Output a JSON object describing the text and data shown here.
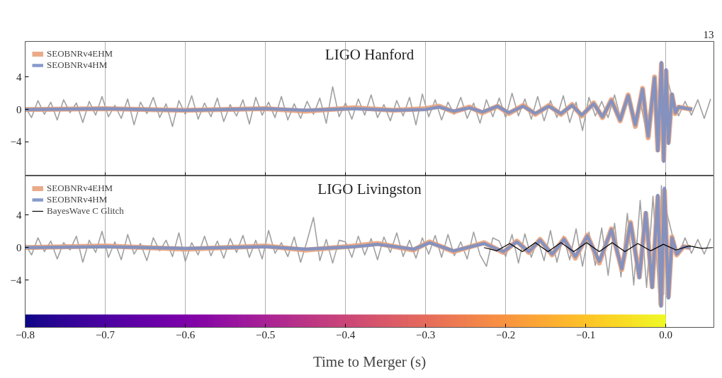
{
  "chart_data": [
    {
      "type": "line",
      "title": "LIGO Hanford",
      "annotations": [
        "13"
      ],
      "xlim": [
        -0.8,
        0.06
      ],
      "xticks": [
        -0.8,
        -0.7,
        -0.6,
        -0.5,
        -0.4,
        -0.3,
        -0.2,
        -0.1,
        0.0
      ],
      "ylim": [
        -8.2,
        8.4
      ],
      "yticks": [
        {
          "value": -4,
          "label": "−4"
        },
        0,
        4
      ],
      "tick_labels": "y",
      "grid": "x",
      "legend": "top left",
      "series": [
        {
          "color": "#a0a0a0",
          "x": [
            -0.8,
            -0.792,
            -0.784,
            -0.776,
            -0.768,
            -0.76,
            -0.752,
            -0.744,
            -0.736,
            -0.728,
            -0.72,
            -0.712,
            -0.704,
            -0.696,
            -0.688,
            -0.68,
            -0.672,
            -0.664,
            -0.656,
            -0.648,
            -0.64,
            -0.632,
            -0.624,
            -0.616,
            -0.608,
            -0.6,
            -0.592,
            -0.584,
            -0.576,
            -0.568,
            -0.56,
            -0.552,
            -0.544,
            -0.536,
            -0.528,
            -0.52,
            -0.512,
            -0.504,
            -0.496,
            -0.488,
            -0.48,
            -0.472,
            -0.464,
            -0.456,
            -0.448,
            -0.44,
            -0.432,
            -0.424,
            -0.416,
            -0.408,
            -0.4,
            -0.392,
            -0.384,
            -0.376,
            -0.368,
            -0.36,
            -0.352,
            -0.344,
            -0.336,
            -0.328,
            -0.32,
            -0.312,
            -0.304,
            -0.296,
            -0.288,
            -0.28,
            -0.272,
            -0.264,
            -0.256,
            -0.248,
            -0.24,
            -0.232,
            -0.224,
            -0.216,
            -0.208,
            -0.2,
            -0.192,
            -0.184,
            -0.176,
            -0.168,
            -0.16,
            -0.152,
            -0.144,
            -0.136,
            -0.128,
            -0.12,
            -0.112,
            -0.104,
            -0.096,
            -0.088,
            -0.08,
            -0.072,
            -0.064,
            -0.056,
            -0.048,
            -0.04,
            -0.032,
            -0.024,
            -0.016,
            -0.008,
            -0.0055,
            -0.0026,
            0.0,
            0.008,
            0.016,
            0.024,
            0.032,
            0.04,
            0.048,
            0.056
          ],
          "values": [
            0.3,
            -1.0,
            1.1,
            -0.6,
            0.9,
            -1.3,
            1.2,
            -0.4,
            0.8,
            -1.6,
            1.0,
            -0.7,
            1.6,
            -0.9,
            0.5,
            -1.1,
            1.3,
            -1.9,
            0.9,
            -0.5,
            1.5,
            -1.0,
            0.7,
            -2.1,
            1.1,
            -0.6,
            1.7,
            -1.2,
            0.8,
            -0.9,
            1.4,
            -1.5,
            0.6,
            -0.8,
            1.2,
            -1.8,
            1.5,
            -0.7,
            0.9,
            -1.0,
            1.6,
            -1.3,
            0.7,
            -1.1,
            1.0,
            -0.6,
            1.4,
            -1.7,
            2.8,
            -0.9,
            0.8,
            -1.2,
            1.3,
            -0.7,
            1.8,
            -1.0,
            0.6,
            -1.4,
            1.1,
            -0.8,
            1.5,
            -1.9,
            1.9,
            -0.9,
            1.2,
            -1.3,
            0.9,
            -0.6,
            1.5,
            -1.1,
            0.8,
            -1.7,
            1.2,
            -0.9,
            1.4,
            -1.0,
            2.0,
            -0.8,
            1.3,
            -1.2,
            1.6,
            -1.4,
            1.1,
            -1.0,
            1.7,
            -1.6,
            0.9,
            -2.6,
            1.5,
            -0.8,
            1.0,
            -1.0,
            1.8,
            -1.3,
            1.7,
            -1.8,
            1.1,
            -3.0,
            3.5,
            -4.8,
            5.4,
            -6.0,
            4.4,
            1.5,
            -0.8,
            1.0,
            -0.7,
            1.2,
            -1.1,
            1.3
          ]
        },
        {
          "name": "SEOBNRv4EHM",
          "color": "#e8a27c",
          "x": [
            -0.8,
            -0.7,
            -0.6,
            -0.5,
            -0.45,
            -0.389,
            -0.34,
            -0.3,
            -0.283,
            -0.265,
            -0.245,
            -0.229,
            -0.21,
            -0.196,
            -0.178,
            -0.163,
            -0.146,
            -0.131,
            -0.117,
            -0.105,
            -0.09,
            -0.079,
            -0.068,
            -0.057,
            -0.047,
            -0.038,
            -0.029,
            -0.022,
            -0.014,
            -0.01,
            -0.0055,
            -0.0026,
            0.0004,
            0.0033,
            0.0077,
            0.012,
            0.016,
            0.033
          ],
          "values": [
            0,
            0.1,
            -0.1,
            0.1,
            -0.2,
            0.2,
            -0.1,
            0.1,
            0.4,
            -0.3,
            0.3,
            -0.4,
            0.4,
            -0.5,
            0.5,
            -0.6,
            0.5,
            -0.6,
            0.6,
            -0.8,
            0.8,
            -1.0,
            1.2,
            -1.4,
            1.8,
            -2.1,
            2.6,
            -3.5,
            4.0,
            -5.0,
            5.6,
            -6.2,
            4.7,
            -4.0,
            1.8,
            -0.5,
            0.3,
            0
          ]
        },
        {
          "name": "SEOBNRv4HM",
          "color": "#7a8fc4",
          "x": [
            -0.8,
            -0.7,
            -0.6,
            -0.5,
            -0.45,
            -0.389,
            -0.34,
            -0.3,
            -0.283,
            -0.265,
            -0.245,
            -0.229,
            -0.21,
            -0.196,
            -0.178,
            -0.163,
            -0.146,
            -0.131,
            -0.117,
            -0.105,
            -0.09,
            -0.079,
            -0.068,
            -0.057,
            -0.047,
            -0.038,
            -0.029,
            -0.022,
            -0.014,
            -0.01,
            -0.0055,
            -0.0026,
            0.0004,
            0.0033,
            0.0077,
            0.012,
            0.016,
            0.033
          ],
          "values": [
            0,
            0.1,
            -0.1,
            0.1,
            -0.1,
            0.1,
            -0.1,
            0,
            0.3,
            -0.2,
            0.2,
            -0.3,
            0.4,
            -0.4,
            0.4,
            -0.5,
            0.4,
            -0.5,
            0.5,
            -0.7,
            0.7,
            -0.9,
            1.1,
            -1.3,
            1.7,
            -1.9,
            2.5,
            -3.3,
            3.9,
            -5.1,
            5.8,
            -6.4,
            4.9,
            -4.2,
            1.9,
            -0.4,
            0.3,
            0
          ]
        }
      ]
    },
    {
      "type": "line",
      "title": "LIGO Livingston",
      "xlabel": "Time to Merger (s)",
      "xlim": [
        -0.8,
        0.06
      ],
      "xticks": [
        {
          "value": -0.8,
          "label": "−0.8"
        },
        {
          "value": -0.7,
          "label": "−0.7"
        },
        {
          "value": -0.6,
          "label": "−0.6"
        },
        {
          "value": -0.5,
          "label": "−0.5"
        },
        {
          "value": -0.4,
          "label": "−0.4"
        },
        {
          "value": -0.3,
          "label": "−0.3"
        },
        {
          "value": -0.2,
          "label": "−0.2"
        },
        {
          "value": -0.1,
          "label": "−0.1"
        },
        {
          "value": 0.0,
          "label": "0.0"
        }
      ],
      "ylim": [
        -9.8,
        8.8
      ],
      "yticks": [
        {
          "value": -4,
          "label": "−4"
        },
        0,
        4
      ],
      "grid": "x",
      "legend": "top left",
      "bands": [
        {
          "axis": "x",
          "from": -0.8,
          "to": 0.0
        }
      ],
      "series": [
        {
          "color": "#a0a0a0",
          "x": [
            -0.8,
            -0.792,
            -0.784,
            -0.776,
            -0.768,
            -0.76,
            -0.752,
            -0.744,
            -0.736,
            -0.728,
            -0.72,
            -0.712,
            -0.704,
            -0.696,
            -0.688,
            -0.68,
            -0.672,
            -0.664,
            -0.656,
            -0.648,
            -0.64,
            -0.632,
            -0.624,
            -0.616,
            -0.608,
            -0.6,
            -0.592,
            -0.584,
            -0.576,
            -0.568,
            -0.56,
            -0.552,
            -0.544,
            -0.536,
            -0.528,
            -0.52,
            -0.512,
            -0.504,
            -0.496,
            -0.488,
            -0.48,
            -0.472,
            -0.464,
            -0.456,
            -0.448,
            -0.44,
            -0.432,
            -0.424,
            -0.416,
            -0.408,
            -0.4,
            -0.392,
            -0.384,
            -0.376,
            -0.368,
            -0.36,
            -0.352,
            -0.344,
            -0.336,
            -0.328,
            -0.32,
            -0.312,
            -0.304,
            -0.296,
            -0.288,
            -0.28,
            -0.272,
            -0.264,
            -0.256,
            -0.248,
            -0.24,
            -0.232,
            -0.224,
            -0.216,
            -0.208,
            -0.2,
            -0.192,
            -0.184,
            -0.176,
            -0.168,
            -0.16,
            -0.152,
            -0.144,
            -0.136,
            -0.128,
            -0.12,
            -0.112,
            -0.104,
            -0.096,
            -0.088,
            -0.08,
            -0.072,
            -0.064,
            -0.056,
            -0.048,
            -0.04,
            -0.032,
            -0.024,
            -0.016,
            -0.008,
            -0.0055,
            -0.0026,
            0.0,
            0.008,
            0.016,
            0.024,
            0.032,
            0.04,
            0.048,
            0.056
          ],
          "values": [
            0.4,
            -0.9,
            1.2,
            -0.5,
            0.8,
            -1.4,
            0.6,
            -0.3,
            1.4,
            -1.8,
            0.9,
            -0.6,
            2.0,
            -1.2,
            0.7,
            -1.5,
            1.6,
            -0.8,
            0.5,
            -1.6,
            1.2,
            -0.4,
            0.9,
            -1.1,
            1.8,
            -1.7,
            0.6,
            -0.9,
            1.4,
            -1.0,
            0.8,
            -1.3,
            1.1,
            -0.6,
            1.5,
            -1.2,
            0.9,
            -1.4,
            2.1,
            -0.7,
            0.6,
            -1.1,
            1.3,
            -1.8,
            0.8,
            3.7,
            -1.6,
            1.0,
            -1.9,
            0.9,
            0.7,
            -1.2,
            1.4,
            -0.9,
            1.1,
            -1.5,
            1.3,
            -0.6,
            1.8,
            -1.1,
            0.9,
            -1.3,
            1.2,
            -0.8,
            1.5,
            -1.2,
            1.6,
            -1.0,
            0.7,
            -1.4,
            1.9,
            -0.9,
            -2.3,
            1.2,
            0.8,
            -1.1,
            1.6,
            -1.9,
            1.7,
            -1.2,
            1.0,
            -1.6,
            2.1,
            -1.8,
            1.4,
            -1.5,
            2.3,
            -2.3,
            1.9,
            -2.2,
            2.4,
            -3.4,
            3.0,
            -3.6,
            4.2,
            -4.6,
            5.8,
            -4.9,
            6.3,
            -7.0,
            7.6,
            -5.8,
            4.8,
            1.6,
            -0.9,
            1.2,
            -0.7,
            1.0,
            -0.8,
            1.1
          ]
        },
        {
          "name": "SEOBNRv4EHM",
          "color": "#e8a27c",
          "x": [
            -0.8,
            -0.7,
            -0.6,
            -0.5,
            -0.45,
            -0.389,
            -0.36,
            -0.315,
            -0.295,
            -0.265,
            -0.227,
            -0.203,
            -0.186,
            -0.171,
            -0.157,
            -0.142,
            -0.127,
            -0.113,
            -0.098,
            -0.083,
            -0.068,
            -0.055,
            -0.044,
            -0.033,
            -0.025,
            -0.017,
            -0.01,
            -0.006,
            -0.0017,
            0.0033,
            0.0077,
            0.0136,
            0.022,
            0.031
          ],
          "values": [
            0,
            0.2,
            -0.2,
            0.2,
            -0.3,
            0.2,
            0.5,
            -0.3,
            0.7,
            -0.5,
            0.6,
            -0.6,
            0.8,
            -0.6,
            1.0,
            -0.9,
            1.1,
            -1.3,
            1.5,
            -1.9,
            2.3,
            -2.7,
            3.1,
            -3.6,
            4.2,
            -4.8,
            6.2,
            -7.0,
            7.0,
            -6.0,
            1.3,
            -0.9,
            0.1,
            0
          ]
        },
        {
          "name": "SEOBNRv4HM",
          "color": "#7a8fc4",
          "x": [
            -0.8,
            -0.7,
            -0.6,
            -0.5,
            -0.45,
            -0.389,
            -0.36,
            -0.315,
            -0.295,
            -0.265,
            -0.227,
            -0.203,
            -0.186,
            -0.171,
            -0.157,
            -0.142,
            -0.127,
            -0.113,
            -0.098,
            -0.083,
            -0.068,
            -0.055,
            -0.044,
            -0.033,
            -0.025,
            -0.017,
            -0.01,
            -0.006,
            -0.0017,
            0.0033,
            0.0077,
            0.0136,
            0.022,
            0.031
          ],
          "values": [
            0,
            0.1,
            -0.1,
            0.1,
            -0.2,
            0.1,
            0.4,
            -0.2,
            0.6,
            -0.4,
            0.5,
            -0.5,
            0.7,
            -0.5,
            0.9,
            -0.8,
            1.0,
            -1.1,
            1.4,
            -1.7,
            2.2,
            -2.6,
            3.0,
            -3.7,
            4.3,
            -4.9,
            6.4,
            -7.2,
            7.3,
            -6.2,
            1.2,
            -0.8,
            0.1,
            0
          ]
        },
        {
          "name": "BayesWave C Glitch",
          "color": "#000000",
          "x": [
            -0.227,
            -0.211,
            -0.195,
            -0.179,
            -0.163,
            -0.147,
            -0.131,
            -0.115,
            -0.099,
            -0.083,
            -0.067,
            -0.051,
            -0.035,
            -0.019,
            -0.003,
            0.013,
            0.029,
            0.045,
            0.059
          ],
          "values": [
            0,
            -0.4,
            0.5,
            -0.5,
            0.6,
            -0.5,
            0.6,
            -0.5,
            0.6,
            -0.5,
            0.6,
            -0.5,
            0.5,
            -0.4,
            0.4,
            -0.3,
            0.2,
            -0.1,
            0
          ]
        }
      ]
    }
  ]
}
